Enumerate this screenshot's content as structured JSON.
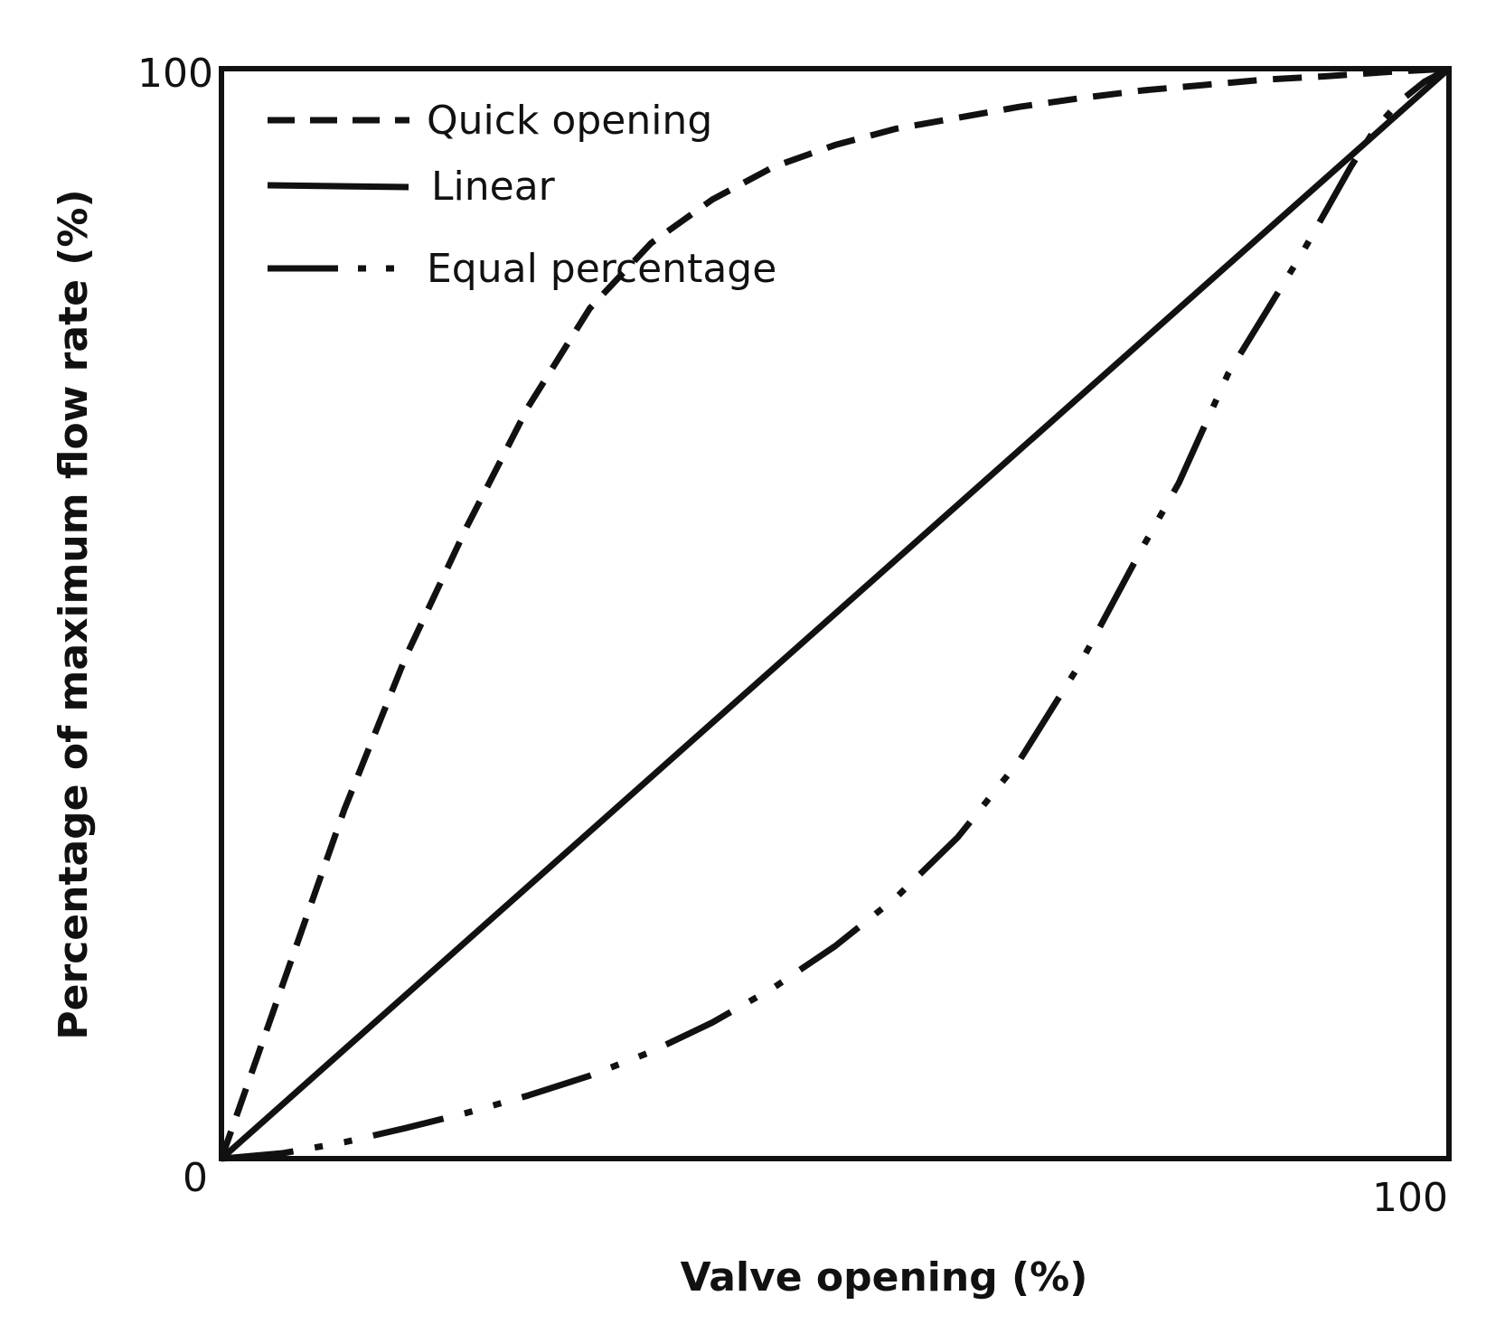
{
  "chart_data": {
    "type": "line",
    "title": "",
    "xlabel": "Valve opening (%)",
    "ylabel": "Percentage of maximum flow rate (%)",
    "xlim": [
      0,
      100
    ],
    "ylim": [
      0,
      100
    ],
    "x_ticks": [
      "0",
      "100"
    ],
    "y_ticks": [
      "0",
      "100"
    ],
    "grid": false,
    "legend_position": "top-left",
    "series": [
      {
        "name": "Quick opening",
        "line_style": "dashed",
        "color": "#111111",
        "x": [
          0,
          5,
          10,
          15,
          20,
          25,
          30,
          35,
          40,
          45,
          50,
          55,
          60,
          65,
          70,
          75,
          80,
          85,
          90,
          95,
          100
        ],
        "y": [
          0,
          16,
          32,
          46,
          58,
          69,
          78,
          84,
          88,
          91,
          93,
          94.5,
          95.5,
          96.5,
          97.3,
          98,
          98.5,
          99,
          99.3,
          99.7,
          100
        ]
      },
      {
        "name": "Linear",
        "line_style": "solid",
        "color": "#111111",
        "x": [
          0,
          100
        ],
        "y": [
          0,
          100
        ]
      },
      {
        "name": "Equal percentage",
        "line_style": "dash-dot-dot",
        "color": "#111111",
        "x": [
          0,
          5,
          10,
          15,
          20,
          25,
          30,
          35,
          40,
          45,
          50,
          55,
          60,
          65,
          70,
          75,
          78,
          80,
          82,
          85,
          88,
          90,
          92,
          94,
          96,
          98,
          100
        ],
        "y": [
          0,
          0.5,
          1.5,
          2.8,
          4.2,
          5.8,
          7.6,
          9.8,
          12.5,
          15.7,
          19.5,
          24,
          29.5,
          36.5,
          45.5,
          56,
          62,
          67,
          72,
          77.5,
          83,
          87,
          91,
          94.5,
          97,
          98.8,
          100
        ]
      }
    ]
  }
}
